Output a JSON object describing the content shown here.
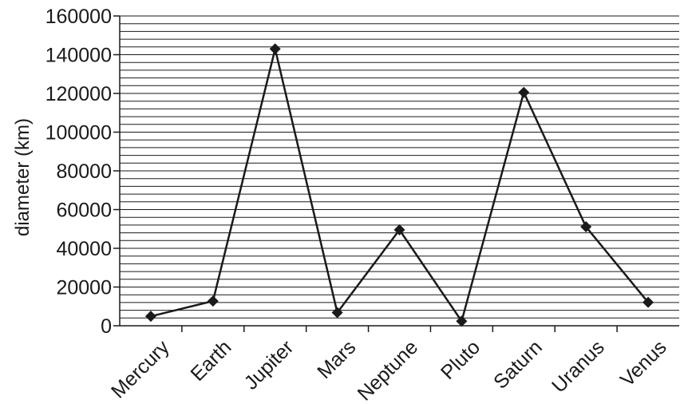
{
  "chart_data": {
    "type": "line",
    "title": "",
    "xlabel": "",
    "ylabel": "diameter (km)",
    "categories": [
      "Mercury",
      "Earth",
      "Jupiter",
      "Mars",
      "Neptune",
      "Pluto",
      "Saturn",
      "Uranus",
      "Venus"
    ],
    "series": [
      {
        "values": [
          4879,
          12756,
          142984,
          6792,
          49528,
          2370,
          120536,
          51118,
          12104
        ]
      }
    ],
    "ylim": [
      0,
      160000
    ],
    "y_major_ticks": [
      0,
      20000,
      40000,
      60000,
      80000,
      100000,
      120000,
      140000,
      160000
    ],
    "y_minor_step": 4000,
    "grid": true,
    "legend": "none",
    "marker": "diamond",
    "colors": {
      "line": "#1a1a1a",
      "grid": "#1a1a1a",
      "axis": "#1a1a1a"
    }
  }
}
